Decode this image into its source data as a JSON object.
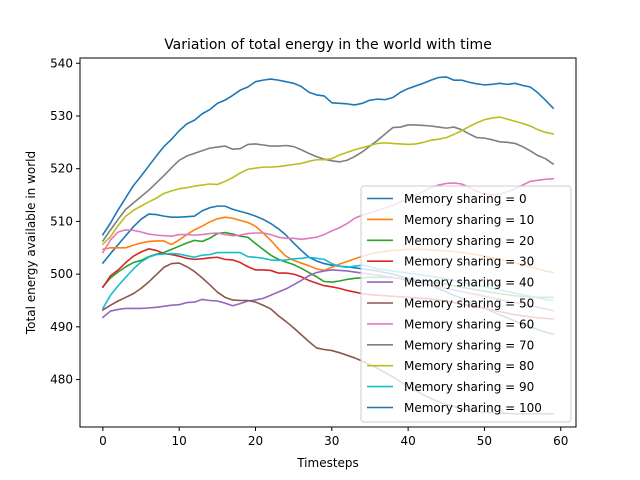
{
  "chart_data": {
    "type": "line",
    "title": "Variation of total energy in the world with time",
    "xlabel": "Timesteps",
    "ylabel": "Total energy available in world",
    "xlim": [
      -3,
      62
    ],
    "ylim": [
      471,
      541
    ],
    "xticks": [
      0,
      10,
      20,
      30,
      40,
      50,
      60
    ],
    "yticks": [
      480,
      490,
      500,
      510,
      520,
      530,
      540
    ],
    "grid": false,
    "legend_position": "lower-right",
    "x": [
      0,
      1,
      2,
      3,
      4,
      5,
      6,
      7,
      8,
      9,
      10,
      11,
      12,
      13,
      14,
      15,
      16,
      17,
      18,
      19,
      20,
      21,
      22,
      23,
      24,
      25,
      26,
      27,
      28,
      29,
      30,
      31,
      32,
      33,
      34,
      35,
      36,
      37,
      38,
      39,
      40,
      41,
      42,
      43,
      44,
      45,
      46,
      47,
      48,
      49,
      50,
      51,
      52,
      53,
      54,
      55,
      56,
      57,
      58,
      59
    ],
    "series": [
      {
        "name": "Memory sharing = 0",
        "color": "#1f77b4",
        "values": [
          502.1,
          503.9,
          505.6,
          507.3,
          509.0,
          510.4,
          511.4,
          511.3,
          511.0,
          510.8,
          510.8,
          510.9,
          511.0,
          512.0,
          512.6,
          512.9,
          512.9,
          512.3,
          511.9,
          511.5,
          511.0,
          510.4,
          509.6,
          508.6,
          507.4,
          505.9,
          504.5,
          503.2,
          502.5,
          502.0,
          501.7,
          501.5,
          501.4,
          501.2,
          501.0,
          500.8,
          500.6,
          500.3,
          500.0,
          499.6,
          499.2,
          498.8,
          498.3,
          497.8,
          497.2,
          496.6,
          496.0,
          495.4,
          494.8,
          494.1,
          493.5,
          492.9,
          492.3,
          491.7,
          491.1,
          490.5,
          490.0,
          489.5,
          489.0,
          488.6
        ]
      },
      {
        "name": "Memory sharing = 10",
        "color": "#ff7f0e",
        "values": [
          504.7,
          505.0,
          505.0,
          505.0,
          505.5,
          505.9,
          506.2,
          506.3,
          506.3,
          505.6,
          506.5,
          507.5,
          508.4,
          509.1,
          509.9,
          510.5,
          510.8,
          510.6,
          510.2,
          509.8,
          509.1,
          507.8,
          506.4,
          504.8,
          503.4,
          502.6,
          502.1,
          501.6,
          501.0,
          500.7,
          501.3,
          501.9,
          502.4,
          502.9,
          503.4,
          503.8,
          504.1,
          504.3,
          504.5,
          504.6,
          504.7,
          504.7,
          504.7,
          504.6,
          504.5,
          504.4,
          504.3,
          504.1,
          503.9,
          503.7,
          503.4,
          503.1,
          502.8,
          502.5,
          502.2,
          501.8,
          501.4,
          501.0,
          500.6,
          500.3
        ]
      },
      {
        "name": "Memory sharing = 20",
        "color": "#2ca02c",
        "values": [
          497.6,
          499.3,
          500.4,
          501.4,
          502.2,
          502.6,
          503.3,
          503.8,
          504.1,
          504.7,
          505.3,
          505.9,
          506.4,
          506.2,
          506.8,
          507.7,
          507.9,
          507.6,
          507.2,
          507.0,
          505.8,
          504.7,
          503.6,
          502.8,
          502.3,
          501.8,
          501.1,
          500.3,
          499.5,
          498.6,
          498.5,
          498.7,
          499.0,
          499.2,
          499.3,
          499.4,
          499.4,
          499.4,
          499.3,
          499.2,
          499.1,
          498.9,
          498.7,
          498.5,
          498.3,
          498.1,
          497.8,
          497.5,
          497.3,
          497.0,
          496.8,
          496.5,
          496.3,
          496.1,
          495.9,
          495.8,
          495.7,
          495.6,
          495.6,
          495.6
        ]
      },
      {
        "name": "Memory sharing = 30",
        "color": "#d62728",
        "values": [
          497.5,
          499.7,
          500.8,
          502.2,
          503.4,
          504.2,
          504.8,
          504.5,
          503.9,
          503.7,
          503.4,
          503.0,
          502.8,
          502.9,
          503.1,
          503.2,
          502.8,
          502.7,
          502.2,
          501.4,
          500.8,
          500.8,
          500.7,
          500.2,
          500.2,
          500.0,
          499.5,
          498.8,
          498.3,
          497.8,
          497.6,
          497.3,
          496.9,
          496.6,
          496.3,
          496.1,
          496.0,
          495.9,
          495.8,
          495.7,
          495.6,
          495.5,
          495.4,
          495.3,
          495.1,
          494.9,
          494.6,
          494.4,
          494.1,
          493.8,
          493.5,
          493.2,
          492.9,
          492.6,
          492.3,
          492.1,
          491.9,
          491.7,
          491.6,
          491.5
        ]
      },
      {
        "name": "Memory sharing = 40",
        "color": "#9467bd",
        "values": [
          491.8,
          493.0,
          493.3,
          493.5,
          493.5,
          493.5,
          493.6,
          493.7,
          493.9,
          494.1,
          494.2,
          494.6,
          494.7,
          495.2,
          495.0,
          494.9,
          494.5,
          494.0,
          494.4,
          494.9,
          495.1,
          495.4,
          496.0,
          496.6,
          497.2,
          498.0,
          498.8,
          499.7,
          500.3,
          500.6,
          500.8,
          500.7,
          500.6,
          500.4,
          500.2,
          500.0,
          499.8,
          499.6,
          499.4,
          499.1,
          498.8,
          498.5,
          498.2,
          497.9,
          497.6,
          497.3,
          497.0,
          496.7,
          496.4,
          496.1,
          495.8,
          495.5,
          495.2,
          494.9,
          494.6,
          494.3,
          494.0,
          493.7,
          493.4,
          493.1
        ]
      },
      {
        "name": "Memory sharing = 50",
        "color": "#8c564b",
        "values": [
          493.2,
          494.1,
          494.9,
          495.6,
          496.3,
          497.3,
          498.5,
          499.9,
          501.3,
          502.0,
          502.1,
          501.4,
          500.5,
          499.3,
          498.0,
          496.6,
          495.6,
          495.1,
          495.0,
          495.0,
          494.7,
          494.1,
          493.4,
          492.1,
          491.0,
          489.8,
          488.5,
          487.2,
          486.0,
          485.7,
          485.5,
          485.1,
          484.6,
          484.1,
          483.5,
          482.8,
          482.1,
          481.3,
          480.5,
          479.6,
          478.7,
          477.9,
          477.1,
          476.4,
          475.8,
          475.3,
          474.9,
          474.5,
          474.2,
          474.0,
          473.8,
          473.7,
          473.6,
          473.6,
          473.5,
          473.5,
          473.5,
          473.5,
          473.5,
          473.5
        ]
      },
      {
        "name": "Memory sharing = 60",
        "color": "#e377c2",
        "values": [
          504.1,
          506.5,
          508.0,
          508.4,
          508.3,
          508.0,
          507.6,
          507.4,
          507.3,
          507.2,
          507.5,
          507.5,
          507.4,
          507.5,
          507.7,
          507.8,
          507.5,
          507.3,
          507.4,
          507.7,
          507.8,
          507.8,
          507.5,
          507.0,
          506.8,
          506.8,
          506.6,
          506.8,
          507.0,
          507.5,
          508.2,
          508.8,
          509.6,
          510.6,
          511.2,
          511.6,
          512.1,
          512.6,
          513.1,
          513.7,
          514.3,
          515.0,
          515.7,
          516.4,
          516.9,
          517.2,
          517.3,
          517.1,
          516.5,
          515.7,
          515.2,
          515.0,
          515.2,
          515.6,
          516.2,
          516.9,
          517.6,
          517.8,
          518.0,
          518.1
        ]
      },
      {
        "name": "Memory sharing = 70",
        "color": "#7f7f7f",
        "values": [
          506.3,
          508.4,
          510.4,
          512.3,
          513.5,
          514.7,
          515.9,
          517.3,
          518.7,
          520.2,
          521.6,
          522.4,
          522.9,
          523.4,
          523.9,
          524.1,
          524.3,
          523.7,
          523.8,
          524.6,
          524.7,
          524.5,
          524.3,
          524.3,
          524.4,
          524.2,
          523.6,
          522.9,
          522.3,
          521.8,
          521.5,
          521.3,
          521.6,
          522.3,
          523.2,
          524.3,
          525.4,
          526.6,
          527.8,
          527.9,
          528.3,
          528.3,
          528.2,
          528.1,
          527.9,
          527.7,
          527.9,
          527.4,
          526.6,
          525.9,
          525.8,
          525.5,
          525.1,
          525.0,
          524.8,
          524.2,
          523.4,
          522.5,
          521.9,
          520.9
        ]
      },
      {
        "name": "Memory sharing = 80",
        "color": "#bcbd22",
        "values": [
          505.7,
          507.1,
          509.2,
          511.0,
          512.1,
          512.9,
          513.7,
          514.4,
          515.3,
          515.8,
          516.2,
          516.4,
          516.7,
          516.9,
          517.1,
          517.0,
          517.6,
          518.3,
          519.2,
          519.9,
          520.1,
          520.3,
          520.3,
          520.4,
          520.6,
          520.8,
          521.0,
          521.4,
          521.7,
          521.7,
          521.9,
          522.6,
          523.1,
          523.6,
          524.0,
          524.4,
          524.8,
          524.9,
          524.8,
          524.7,
          524.6,
          524.7,
          525.0,
          525.4,
          525.6,
          525.9,
          526.5,
          527.2,
          528.0,
          528.7,
          529.3,
          529.6,
          529.8,
          529.4,
          529.0,
          528.6,
          528.1,
          527.4,
          526.9,
          526.6
        ]
      },
      {
        "name": "Memory sharing = 90",
        "color": "#17becf",
        "values": [
          493.5,
          496.0,
          497.8,
          499.4,
          501.0,
          502.3,
          503.2,
          503.7,
          503.8,
          503.9,
          503.8,
          503.5,
          503.2,
          503.6,
          503.7,
          504.1,
          504.1,
          504.1,
          504.1,
          503.3,
          503.2,
          503.0,
          502.7,
          502.6,
          502.7,
          502.9,
          503.0,
          503.2,
          503.0,
          502.8,
          502.0,
          501.5,
          501.3,
          501.5,
          501.7,
          501.4,
          501.0,
          500.8,
          500.6,
          500.4,
          500.2,
          500.0,
          499.8,
          499.6,
          499.4,
          499.1,
          498.8,
          498.5,
          498.2,
          497.9,
          497.6,
          497.3,
          497.0,
          496.7,
          496.4,
          496.1,
          495.8,
          495.5,
          495.2,
          495.0
        ]
      },
      {
        "name": "Memory sharing = 100",
        "color": "#1f77b4",
        "values": [
          507.5,
          509.7,
          512.2,
          514.5,
          516.8,
          518.6,
          520.5,
          522.4,
          524.2,
          525.6,
          527.2,
          528.5,
          529.2,
          530.4,
          531.2,
          532.4,
          533.0,
          533.9,
          534.9,
          535.5,
          536.5,
          536.8,
          537.0,
          536.8,
          536.5,
          536.2,
          535.6,
          534.5,
          534.0,
          533.8,
          532.5,
          532.4,
          532.3,
          532.1,
          532.4,
          533.0,
          533.2,
          533.1,
          533.5,
          534.5,
          535.2,
          535.7,
          536.2,
          536.8,
          537.3,
          537.4,
          536.8,
          536.8,
          536.4,
          536.1,
          535.9,
          536.0,
          536.2,
          536.0,
          536.2,
          535.8,
          535.5,
          534.4,
          533.0,
          531.5
        ]
      }
    ]
  }
}
